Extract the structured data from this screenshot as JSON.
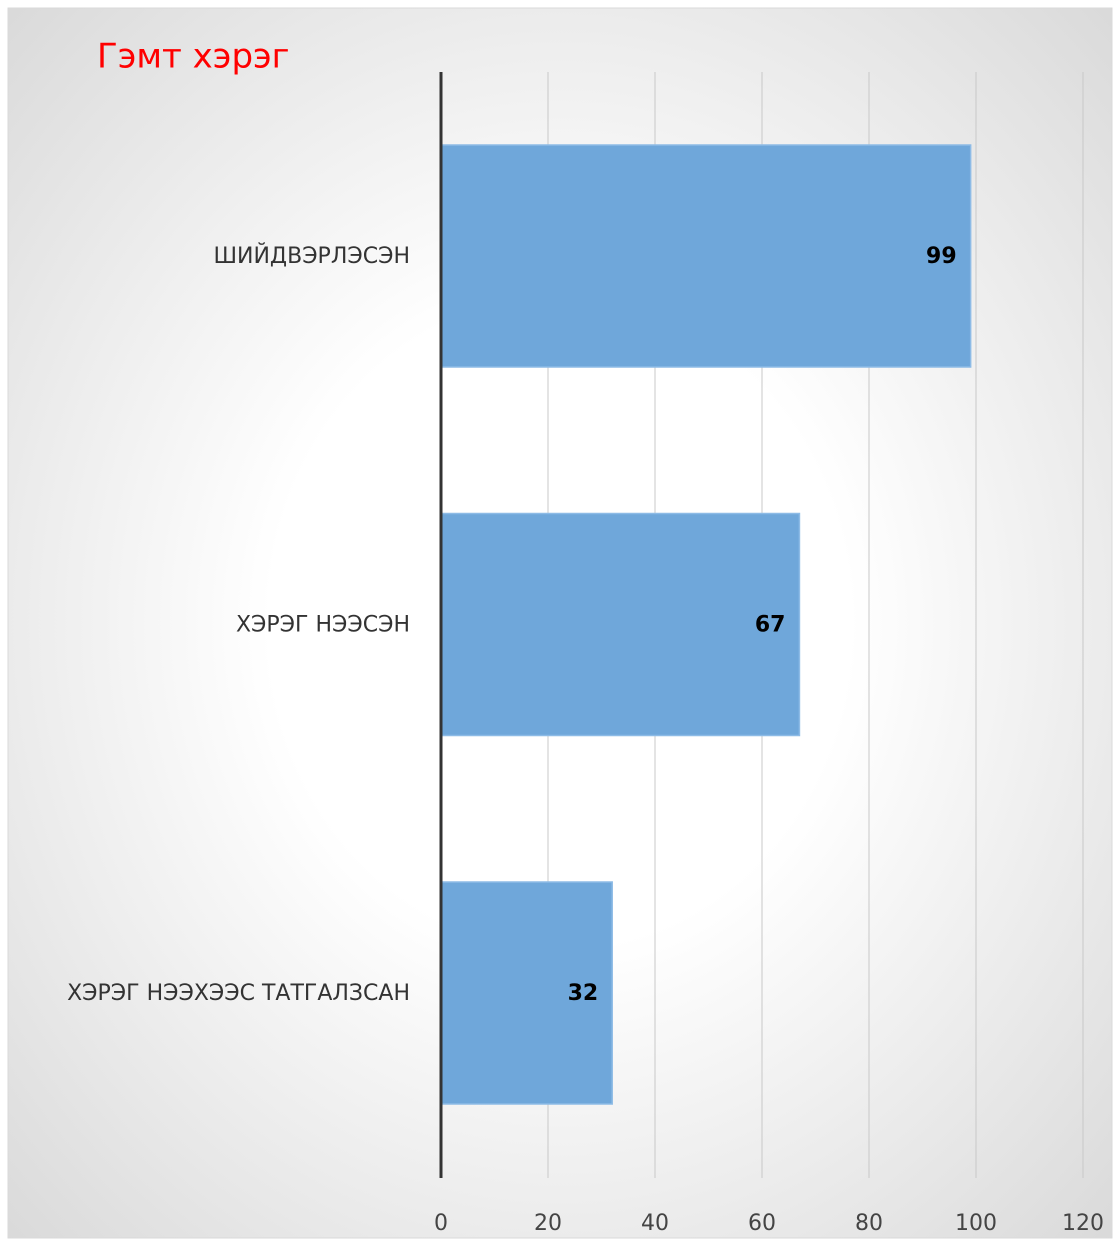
{
  "chart_data": {
    "type": "hbar",
    "title": "Гэмт хэрэг",
    "categories": [
      "ШИЙДВЭРЛЭСЭН",
      "ХЭРЭГ НЭЭСЭН",
      "ХЭРЭГ НЭЭХЭЭС ТАТГАЛЗСАН"
    ],
    "values": [
      99,
      67,
      32
    ],
    "color": "#6fa7da",
    "xlim": [
      0,
      120
    ],
    "xticks": [
      0,
      20,
      40,
      60,
      80,
      100,
      120
    ],
    "grid": true
  }
}
